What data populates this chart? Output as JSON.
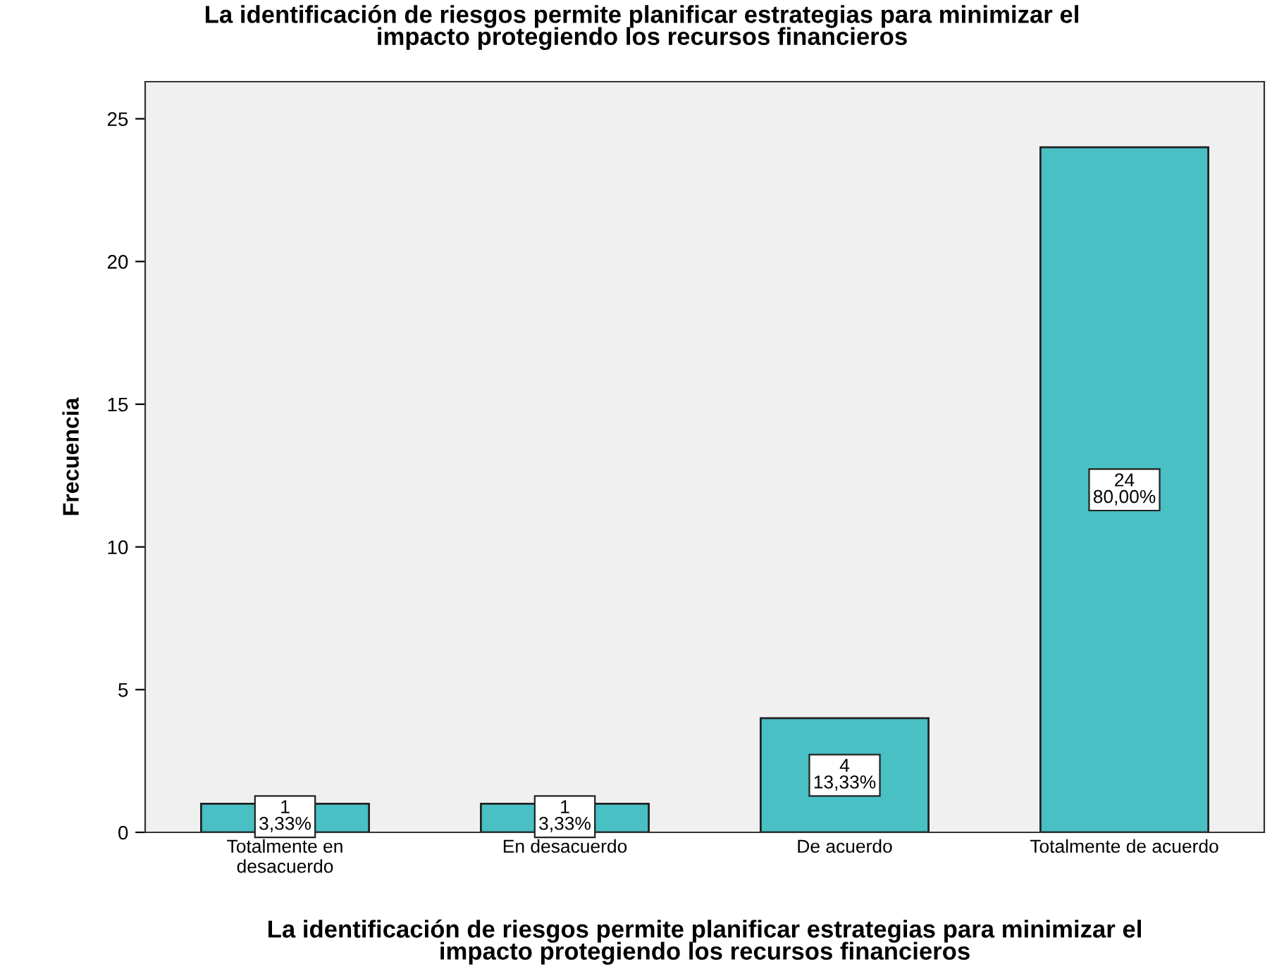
{
  "chart_data": {
    "type": "bar",
    "title": "La identificación de riesgos permite planificar estrategias para minimizar el\nimpacto protegiendo los recursos financieros",
    "xlabel": "La identificación de riesgos permite planificar estrategias para minimizar el\nimpacto protegiendo los recursos financieros",
    "ylabel": "Frecuencia",
    "categories": [
      "Totalmente en\ndesacuerdo",
      "En desacuerdo",
      "De acuerdo",
      "Totalmente de acuerdo"
    ],
    "values": [
      1,
      1,
      4,
      24
    ],
    "value_labels": [
      "1\n3,33%",
      "1\n3,33%",
      "4\n13,33%",
      "24\n80,00%"
    ],
    "color": "#48c0c4",
    "ylim": [
      0,
      26.3
    ],
    "yticks": [
      0,
      5,
      10,
      15,
      20,
      25
    ],
    "grid": false
  }
}
